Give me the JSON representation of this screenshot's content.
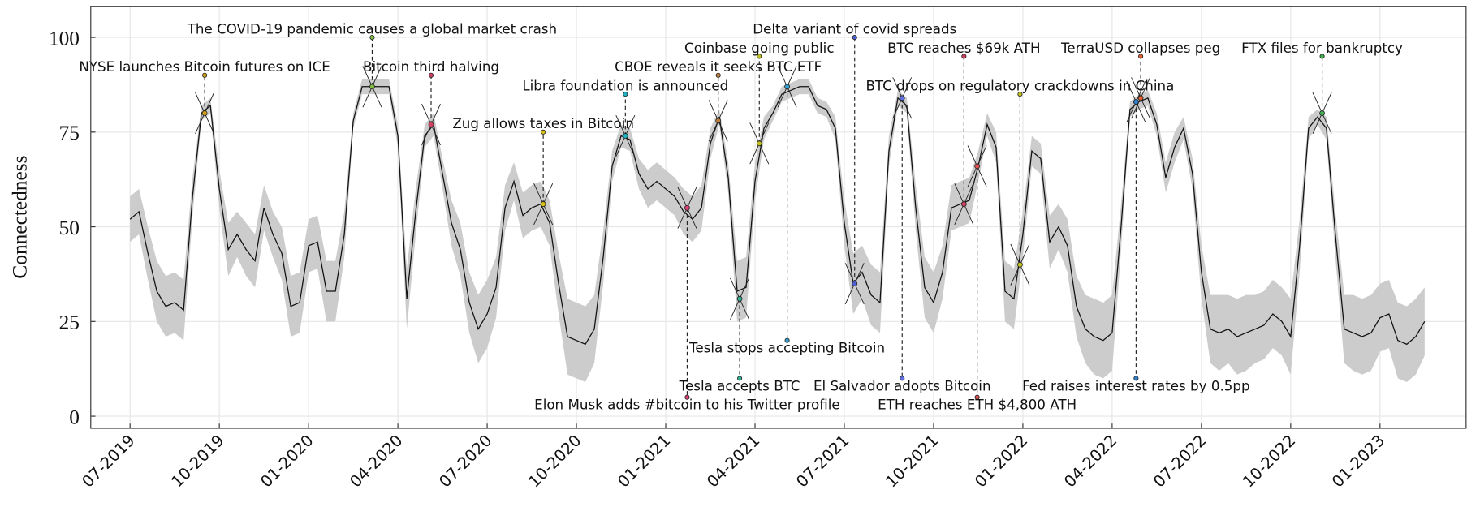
{
  "chart_data": {
    "type": "line",
    "y_label": "Connectedness",
    "xlim": [
      2019.39,
      2023.241
    ],
    "ylim": [
      -3.2,
      108.1
    ],
    "grid": true,
    "line_color": "#111111",
    "band_color": "#cccccc",
    "xticks": [
      {
        "value": 2019.5,
        "label": "07-2019"
      },
      {
        "value": 2019.75,
        "label": "10-2019"
      },
      {
        "value": 2020.0,
        "label": "01-2020"
      },
      {
        "value": 2020.25,
        "label": "04-2020"
      },
      {
        "value": 2020.5,
        "label": "07-2020"
      },
      {
        "value": 2020.75,
        "label": "10-2020"
      },
      {
        "value": 2021.0,
        "label": "01-2021"
      },
      {
        "value": 2021.25,
        "label": "04-2021"
      },
      {
        "value": 2021.5,
        "label": "07-2021"
      },
      {
        "value": 2021.75,
        "label": "10-2021"
      },
      {
        "value": 2022.0,
        "label": "01-2022"
      },
      {
        "value": 2022.25,
        "label": "04-2022"
      },
      {
        "value": 2022.5,
        "label": "07-2022"
      },
      {
        "value": 2022.75,
        "label": "10-2022"
      },
      {
        "value": 2023.0,
        "label": "01-2023"
      }
    ],
    "yticks": [
      0,
      25,
      50,
      75,
      100
    ],
    "x": [
      2019.5,
      2019.525,
      2019.55,
      2019.575,
      2019.6,
      2019.625,
      2019.65,
      2019.675,
      2019.7,
      2019.725,
      2019.75,
      2019.775,
      2019.8,
      2019.825,
      2019.85,
      2019.875,
      2019.9,
      2019.925,
      2019.95,
      2019.975,
      2020.0,
      2020.025,
      2020.05,
      2020.075,
      2020.1,
      2020.125,
      2020.15,
      2020.175,
      2020.2,
      2020.225,
      2020.25,
      2020.275,
      2020.3,
      2020.325,
      2020.35,
      2020.375,
      2020.4,
      2020.425,
      2020.45,
      2020.475,
      2020.5,
      2020.525,
      2020.55,
      2020.575,
      2020.6,
      2020.625,
      2020.65,
      2020.675,
      2020.7,
      2020.725,
      2020.75,
      2020.775,
      2020.8,
      2020.825,
      2020.85,
      2020.875,
      2020.9,
      2020.925,
      2020.95,
      2020.975,
      2021.0,
      2021.025,
      2021.05,
      2021.075,
      2021.1,
      2021.125,
      2021.15,
      2021.175,
      2021.2,
      2021.225,
      2021.25,
      2021.275,
      2021.3,
      2021.325,
      2021.35,
      2021.375,
      2021.4,
      2021.425,
      2021.45,
      2021.475,
      2021.5,
      2021.525,
      2021.55,
      2021.575,
      2021.6,
      2021.625,
      2021.65,
      2021.675,
      2021.7,
      2021.725,
      2021.75,
      2021.775,
      2021.8,
      2021.825,
      2021.85,
      2021.875,
      2021.9,
      2021.925,
      2021.95,
      2021.975,
      2022.0,
      2022.025,
      2022.05,
      2022.075,
      2022.1,
      2022.125,
      2022.15,
      2022.175,
      2022.2,
      2022.225,
      2022.25,
      2022.275,
      2022.3,
      2022.325,
      2022.35,
      2022.375,
      2022.4,
      2022.425,
      2022.45,
      2022.475,
      2022.5,
      2022.525,
      2022.55,
      2022.575,
      2022.6,
      2022.625,
      2022.65,
      2022.675,
      2022.7,
      2022.725,
      2022.75,
      2022.775,
      2022.8,
      2022.825,
      2022.85,
      2022.875,
      2022.9,
      2022.925,
      2022.95,
      2022.975,
      2023.0,
      2023.025,
      2023.05,
      2023.075,
      2023.1,
      2023.125
    ],
    "values": [
      52,
      54,
      43,
      33,
      29,
      30,
      28,
      58,
      80,
      82,
      60,
      44,
      48,
      44,
      41,
      55,
      48,
      43,
      29,
      30,
      45,
      46,
      33,
      33,
      48,
      78,
      87,
      87,
      87,
      87,
      74,
      31,
      54,
      74,
      77,
      64,
      51,
      44,
      30,
      23,
      27,
      34,
      55,
      62,
      53,
      55,
      56,
      51,
      35,
      21,
      20,
      19,
      23,
      42,
      66,
      74,
      73,
      64,
      60,
      62,
      60,
      58,
      54,
      52,
      55,
      72,
      79,
      63,
      33,
      34,
      62,
      76,
      80,
      85,
      86,
      87,
      87,
      82,
      81,
      76,
      51,
      35,
      38,
      32,
      30,
      70,
      84,
      82,
      55,
      34,
      30,
      38,
      55,
      56,
      57,
      66,
      77,
      71,
      33,
      31,
      48,
      70,
      68,
      46,
      50,
      45,
      29,
      23,
      21,
      20,
      22,
      50,
      81,
      83,
      84,
      77,
      63,
      71,
      76,
      64,
      38,
      23,
      22,
      23,
      21,
      22,
      23,
      24,
      27,
      25,
      21,
      45,
      76,
      79,
      76,
      48,
      23,
      22,
      21,
      22,
      26,
      27,
      20,
      19,
      21,
      25
    ],
    "lower": [
      46,
      48,
      36,
      25,
      21,
      22,
      20,
      53,
      78,
      80,
      55,
      37,
      42,
      37,
      34,
      49,
      42,
      36,
      21,
      22,
      38,
      39,
      25,
      25,
      42,
      76,
      85,
      85,
      85,
      85,
      71,
      23,
      48,
      71,
      74,
      60,
      45,
      37,
      22,
      14,
      18,
      26,
      49,
      57,
      47,
      49,
      50,
      45,
      27,
      11,
      10,
      9,
      14,
      35,
      62,
      71,
      70,
      60,
      55,
      57,
      55,
      53,
      48,
      46,
      49,
      68,
      77,
      59,
      25,
      26,
      57,
      73,
      78,
      83,
      84,
      85,
      85,
      80,
      79,
      73,
      45,
      27,
      31,
      24,
      22,
      66,
      82,
      80,
      49,
      26,
      22,
      31,
      49,
      50,
      51,
      62,
      74,
      67,
      25,
      23,
      42,
      66,
      64,
      39,
      44,
      38,
      21,
      14,
      11,
      10,
      12,
      44,
      79,
      81,
      82,
      74,
      59,
      67,
      73,
      60,
      31,
      14,
      12,
      14,
      11,
      12,
      14,
      15,
      18,
      16,
      11,
      38,
      73,
      77,
      73,
      42,
      14,
      12,
      11,
      12,
      17,
      18,
      10,
      9,
      11,
      16
    ],
    "upper": [
      58,
      60,
      50,
      41,
      37,
      38,
      36,
      63,
      82,
      84,
      65,
      51,
      54,
      51,
      48,
      61,
      54,
      50,
      37,
      38,
      52,
      53,
      41,
      41,
      54,
      80,
      89,
      89,
      89,
      89,
      77,
      39,
      60,
      77,
      80,
      68,
      57,
      51,
      38,
      32,
      36,
      42,
      61,
      67,
      59,
      61,
      62,
      57,
      43,
      31,
      30,
      29,
      32,
      49,
      70,
      77,
      76,
      68,
      65,
      67,
      65,
      63,
      60,
      58,
      61,
      76,
      81,
      67,
      41,
      42,
      67,
      79,
      82,
      87,
      88,
      89,
      89,
      84,
      83,
      79,
      57,
      43,
      45,
      40,
      38,
      74,
      86,
      84,
      61,
      42,
      38,
      45,
      61,
      62,
      63,
      70,
      80,
      75,
      41,
      39,
      54,
      74,
      72,
      53,
      56,
      52,
      37,
      32,
      31,
      30,
      32,
      56,
      83,
      85,
      86,
      80,
      67,
      75,
      79,
      68,
      45,
      32,
      32,
      32,
      31,
      32,
      32,
      33,
      36,
      34,
      31,
      52,
      79,
      81,
      79,
      54,
      32,
      32,
      31,
      32,
      35,
      36,
      30,
      29,
      31,
      34
    ],
    "annotations": [
      {
        "text": "NYSE launches Bitcoin futures on ICE",
        "x": 2019.709,
        "y": 80,
        "label_y": 90,
        "color": "#d4a017"
      },
      {
        "text": "The COVID-19 pandemic causes a global market crash",
        "x": 2020.178,
        "y": 87,
        "label_y": 100,
        "color": "#7fbf3f"
      },
      {
        "text": "Bitcoin third halving",
        "x": 2020.343,
        "y": 77,
        "label_y": 90,
        "color": "#d04060"
      },
      {
        "text": "Zug allows taxes in Bitcoin",
        "x": 2020.657,
        "y": 56,
        "label_y": 75,
        "color": "#d4c017"
      },
      {
        "text": "Libra foundation is announced",
        "x": 2020.887,
        "y": 74,
        "label_y": 85,
        "color": "#20b0c0"
      },
      {
        "text": "Elon Musk adds #bitcoin to his Twitter profile",
        "x": 2021.06,
        "y": 55,
        "label_y": 5,
        "color": "#e04070"
      },
      {
        "text": "CBOE reveals it seeks BTC ETF",
        "x": 2021.147,
        "y": 78,
        "label_y": 90,
        "color": "#c08040"
      },
      {
        "text": "Tesla accepts BTC",
        "x": 2021.207,
        "y": 31,
        "label_y": 10,
        "color": "#30b090"
      },
      {
        "text": "Coinbase going public",
        "x": 2021.262,
        "y": 72,
        "label_y": 95,
        "color": "#c0c020"
      },
      {
        "text": "Tesla stops accepting Bitcoin",
        "x": 2021.34,
        "y": 87,
        "label_y": 20,
        "color": "#30a0d0"
      },
      {
        "text": "Delta variant of covid spreads",
        "x": 2021.529,
        "y": 35,
        "label_y": 100,
        "color": "#5060d0"
      },
      {
        "text": "El Salvador adopts Bitcoin",
        "x": 2021.662,
        "y": 84,
        "label_y": 10,
        "color": "#6070e0"
      },
      {
        "text": "BTC drops on regulatory crackdowns in China",
        "x": 2021.992,
        "y": 40,
        "label_y": 85,
        "color": "#c0c020"
      },
      {
        "text": "BTC reaches $69k ATH",
        "x": 2021.835,
        "y": 56,
        "label_y": 95,
        "color": "#d04060"
      },
      {
        "text": "ETH reaches ETH $4,800 ATH",
        "x": 2021.872,
        "y": 66,
        "label_y": 5,
        "color": "#e05050"
      },
      {
        "text": "TerraUSD collapses peg",
        "x": 2022.33,
        "y": 84,
        "label_y": 95,
        "color": "#e06030"
      },
      {
        "text": "Fed raises interest rates by 0.5pp",
        "x": 2022.317,
        "y": 83,
        "label_y": 10,
        "color": "#3080d0"
      },
      {
        "text": "FTX files for bankruptcy",
        "x": 2022.838,
        "y": 80,
        "label_y": 95,
        "color": "#40b050"
      }
    ]
  }
}
